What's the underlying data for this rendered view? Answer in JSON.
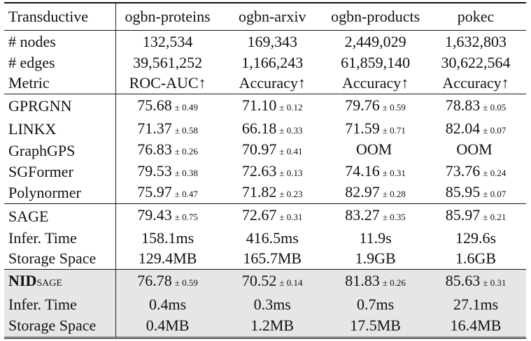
{
  "header": {
    "corner": "Transductive",
    "datasets": [
      "ogbn-proteins",
      "ogbn-arxiv",
      "ogbn-products",
      "pokec"
    ]
  },
  "stats": [
    {
      "label": "# nodes",
      "values": [
        "132,534",
        "169,343",
        "2,449,029",
        "1,632,803"
      ]
    },
    {
      "label": "# edges",
      "values": [
        "39,561,252",
        "1,166,243",
        "61,859,140",
        "30,622,564"
      ]
    },
    {
      "label": "Metric",
      "values": [
        "ROC-AUC↑",
        "Accuracy↑",
        "Accuracy↑",
        "Accuracy↑"
      ]
    }
  ],
  "baselines": [
    {
      "label": "GPRGNN",
      "values": [
        [
          "75.68",
          "± 0.49"
        ],
        [
          "71.10",
          "± 0.12"
        ],
        [
          "79.76",
          "± 0.59"
        ],
        [
          "78.83",
          "± 0.05"
        ]
      ]
    },
    {
      "label": "LINKX",
      "values": [
        [
          "71.37",
          "± 0.58"
        ],
        [
          "66.18",
          "± 0.33"
        ],
        [
          "71.59",
          "± 0.71"
        ],
        [
          "82.04",
          "± 0.07"
        ]
      ]
    },
    {
      "label": "GraphGPS",
      "values": [
        [
          "76.83",
          "± 0.26"
        ],
        [
          "70.97",
          "± 0.41"
        ],
        [
          "OOM",
          ""
        ],
        [
          "OOM",
          ""
        ]
      ]
    },
    {
      "label": "SGFormer",
      "values": [
        [
          "79.53",
          "± 0.38"
        ],
        [
          "72.63",
          "± 0.13"
        ],
        [
          "74.16",
          "± 0.31"
        ],
        [
          "73.76",
          "± 0.24"
        ]
      ]
    },
    {
      "label": "Polynormer",
      "values": [
        [
          "75.97",
          "± 0.47"
        ],
        [
          "71.82",
          "± 0.23"
        ],
        [
          "82.97",
          "± 0.28"
        ],
        [
          "85.95",
          "± 0.07"
        ]
      ]
    }
  ],
  "sage": {
    "label": "SAGE",
    "acc": [
      [
        "79.43",
        "± 0.75"
      ],
      [
        "72.67",
        "± 0.31"
      ],
      [
        "83.27",
        "± 0.35"
      ],
      [
        "85.97",
        "± 0.21"
      ]
    ],
    "time_label": "Infer. Time",
    "time": [
      "158.1ms",
      "416.5ms",
      "11.9s",
      "129.6s"
    ],
    "storage_label": "Storage Space",
    "storage": [
      "129.4MB",
      "165.7MB",
      "1.9GB",
      "1.6GB"
    ]
  },
  "nid": {
    "label": "NID",
    "label_sub": "SAGE",
    "acc": [
      [
        "76.78",
        "± 0.59"
      ],
      [
        "70.52",
        "± 0.14"
      ],
      [
        "81.83",
        "± 0.26"
      ],
      [
        "85.63",
        "± 0.31"
      ]
    ],
    "time_label": "Infer. Time",
    "time": [
      "0.4ms",
      "0.3ms",
      "0.7ms",
      "27.1ms"
    ],
    "storage_label": "Storage Space",
    "storage": [
      "0.4MB",
      "1.2MB",
      "17.5MB",
      "16.4MB"
    ]
  }
}
